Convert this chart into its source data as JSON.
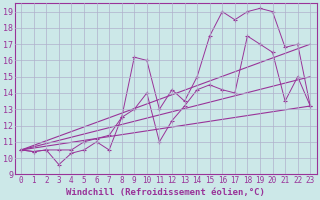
{
  "background_color": "#cce8e8",
  "grid_color": "#b0b0cc",
  "line_color": "#993399",
  "xlabel": "Windchill (Refroidissement éolien,°C)",
  "xlabel_fontsize": 6.5,
  "xtick_fontsize": 5.5,
  "ytick_fontsize": 6,
  "xlim": [
    -0.5,
    23.5
  ],
  "ylim": [
    9.0,
    19.5
  ],
  "yticks": [
    9,
    10,
    11,
    12,
    13,
    14,
    15,
    16,
    17,
    18,
    19
  ],
  "xticks": [
    0,
    1,
    2,
    3,
    4,
    5,
    6,
    7,
    8,
    9,
    10,
    11,
    12,
    13,
    14,
    15,
    16,
    17,
    18,
    19,
    20,
    21,
    22,
    23
  ],
  "line1_x": [
    0,
    1,
    2,
    3,
    4,
    5,
    6,
    7,
    8,
    9,
    10,
    11,
    12,
    13,
    14,
    15,
    16,
    17,
    18,
    19,
    20,
    21,
    22,
    23
  ],
  "line1_y": [
    10.5,
    10.4,
    10.5,
    10.5,
    10.5,
    11.0,
    11.2,
    11.4,
    12.5,
    16.2,
    16.0,
    13.0,
    14.2,
    13.5,
    15.0,
    17.5,
    19.0,
    18.5,
    19.0,
    19.2,
    19.0,
    16.8,
    17.0,
    13.2
  ],
  "line2_x": [
    0,
    1,
    2,
    3,
    4,
    5,
    6,
    7,
    8,
    9,
    10,
    11,
    12,
    13,
    14,
    15,
    16,
    17,
    18,
    19,
    20,
    21,
    22,
    23
  ],
  "line2_y": [
    10.5,
    10.4,
    10.5,
    9.6,
    10.3,
    10.5,
    11.0,
    10.5,
    12.5,
    13.0,
    14.0,
    11.0,
    12.3,
    13.2,
    14.2,
    14.5,
    14.2,
    14.0,
    17.5,
    17.0,
    16.5,
    13.5,
    15.0,
    13.2
  ],
  "line3_x": [
    0,
    23
  ],
  "line3_y": [
    10.5,
    17.0
  ],
  "line4_x": [
    0,
    23
  ],
  "line4_y": [
    10.5,
    15.0
  ],
  "line5_x": [
    0,
    23
  ],
  "line5_y": [
    10.5,
    13.2
  ]
}
